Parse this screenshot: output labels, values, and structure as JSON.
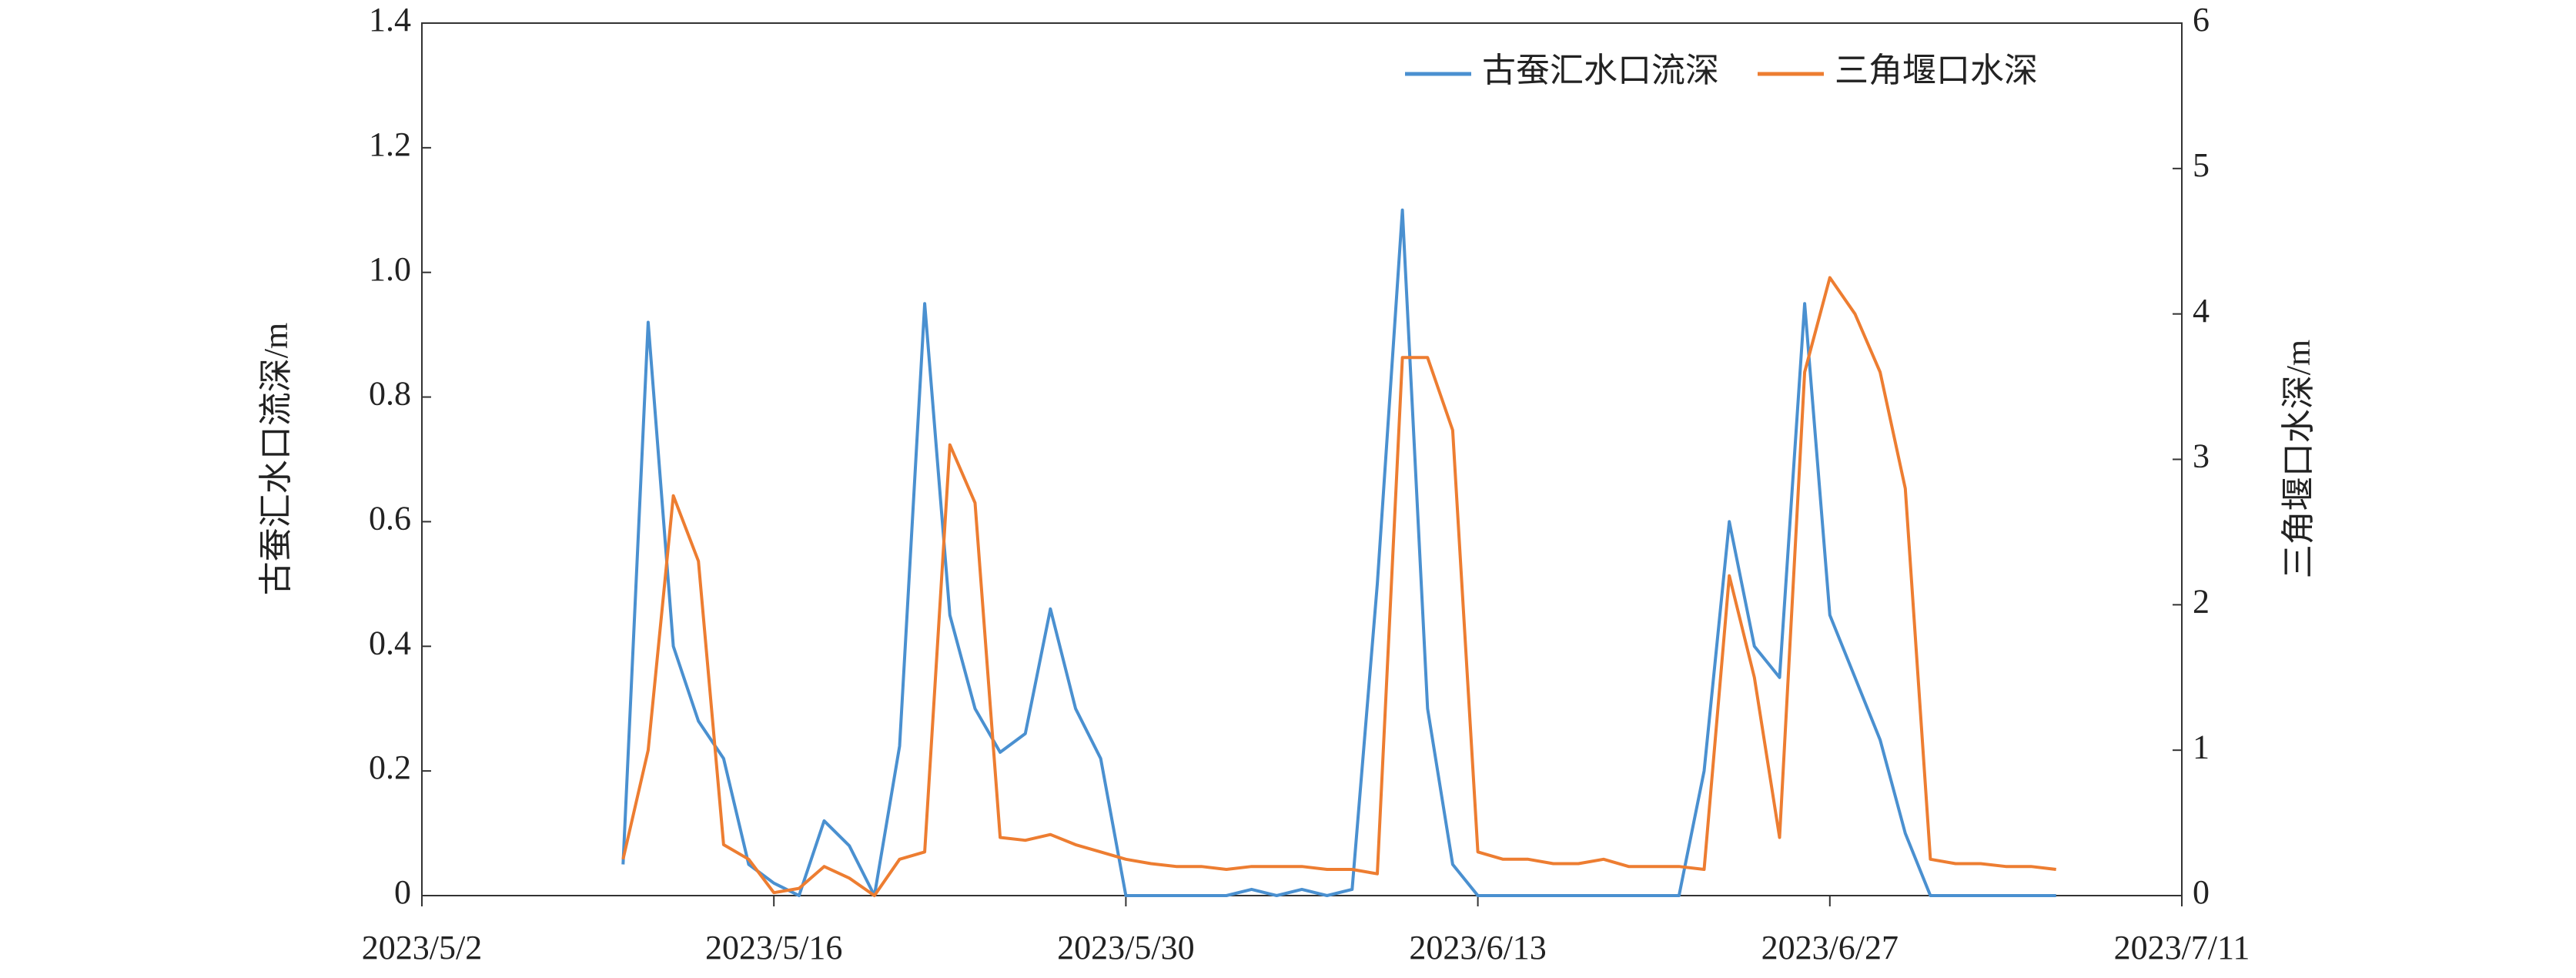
{
  "chart_data": {
    "type": "line",
    "y_label": "古蚕汇水口流深/m",
    "y2_label": "三角堰口水深/m",
    "x": [
      "2023/5/10",
      "2023/5/11",
      "2023/5/12",
      "2023/5/13",
      "2023/5/14",
      "2023/5/15",
      "2023/5/16",
      "2023/5/17",
      "2023/5/18",
      "2023/5/19",
      "2023/5/20",
      "2023/5/21",
      "2023/5/22",
      "2023/5/23",
      "2023/5/24",
      "2023/5/25",
      "2023/5/26",
      "2023/5/27",
      "2023/5/28",
      "2023/5/29",
      "2023/5/30",
      "2023/5/31",
      "2023/6/1",
      "2023/6/2",
      "2023/6/3",
      "2023/6/4",
      "2023/6/5",
      "2023/6/6",
      "2023/6/7",
      "2023/6/8",
      "2023/6/9",
      "2023/6/10",
      "2023/6/11",
      "2023/6/12",
      "2023/6/13",
      "2023/6/14",
      "2023/6/15",
      "2023/6/16",
      "2023/6/17",
      "2023/6/18",
      "2023/6/19",
      "2023/6/20",
      "2023/6/21",
      "2023/6/22",
      "2023/6/23",
      "2023/6/24",
      "2023/6/25",
      "2023/6/26",
      "2023/6/27",
      "2023/6/28",
      "2023/6/29",
      "2023/6/30",
      "2023/7/1",
      "2023/7/2",
      "2023/7/3",
      "2023/7/4",
      "2023/7/5",
      "2023/7/6"
    ],
    "series": [
      {
        "name": "古蚕汇水口流深",
        "color": "#4a90d0",
        "axis": "y",
        "values": [
          0.05,
          0.92,
          0.4,
          0.28,
          0.22,
          0.05,
          0.02,
          0,
          0.12,
          0.08,
          0,
          0.24,
          0.95,
          0.45,
          0.3,
          0.23,
          0.26,
          0.46,
          0.3,
          0.22,
          0,
          0,
          0,
          0,
          0,
          0.01,
          0,
          0.01,
          0,
          0.01,
          0.5,
          1.1,
          0.3,
          0.05,
          0,
          0,
          0,
          0,
          0,
          0,
          0,
          0,
          0,
          0.2,
          0.6,
          0.4,
          0.35,
          0.95,
          0.45,
          0.35,
          0.25,
          0.1,
          0,
          0,
          0,
          0,
          0,
          0
        ]
      },
      {
        "name": "三角堰口水深",
        "color": "#ed7d31",
        "axis": "y2",
        "values": [
          0.25,
          1.0,
          2.75,
          2.3,
          0.35,
          0.25,
          0.02,
          0.05,
          0.2,
          0.12,
          0,
          0.25,
          0.3,
          3.1,
          2.7,
          0.4,
          0.38,
          0.42,
          0.35,
          0.3,
          0.25,
          0.22,
          0.2,
          0.2,
          0.18,
          0.2,
          0.2,
          0.2,
          0.18,
          0.18,
          0.15,
          3.7,
          3.7,
          3.2,
          0.3,
          0.25,
          0.25,
          0.22,
          0.22,
          0.25,
          0.2,
          0.2,
          0.2,
          0.18,
          2.2,
          1.5,
          0.4,
          3.6,
          4.25,
          4.0,
          3.6,
          2.8,
          0.25,
          0.22,
          0.22,
          0.2,
          0.2,
          0.18
        ]
      }
    ],
    "xlim": [
      "2023/5/2",
      "2023/7/11"
    ],
    "xticks": [
      "2023/5/2",
      "2023/5/16",
      "2023/5/30",
      "2023/6/13",
      "2023/6/27",
      "2023/7/11"
    ],
    "ylim": [
      0,
      1.4
    ],
    "yticks": [
      0,
      0.2,
      0.4,
      0.6,
      0.8,
      {
        "value": 1,
        "label": "1.0"
      },
      1.2,
      1.4
    ],
    "y2lim": [
      0,
      6
    ],
    "y2ticks": [
      0,
      1,
      2,
      3,
      4,
      5,
      6
    ],
    "legend": "upper right"
  }
}
